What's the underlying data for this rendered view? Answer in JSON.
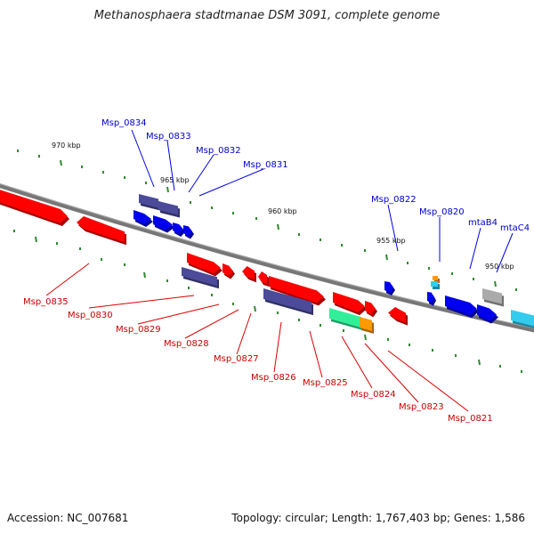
{
  "title": "Methanosphaera stadtmanae DSM 3091, complete genome",
  "footer": {
    "accession": "Accession: NC_007681",
    "summary": "Topology: circular; Length: 1,767,403 bp; Genes: 1,586"
  },
  "colors": {
    "backbone": "#777777",
    "tick": "#2e8b2e",
    "red_gene": "#ff0000",
    "blue_gene": "#0000ee",
    "purple_gene": "#4b4b9a",
    "green_gene": "#33ee99",
    "orange_gene": "#ff9900",
    "cyan_gene": "#33ccee",
    "grey_gene": "#aaaaaa",
    "blue_label": "#0000cc",
    "red_label": "#cc0000"
  },
  "scale_labels": [
    "970 kbp",
    "965 kbp",
    "960 kbp",
    "955 kbp",
    "950 kbp"
  ],
  "blue_labels": [
    "Msp_0834",
    "Msp_0833",
    "Msp_0832",
    "Msp_0831",
    "Msp_0822",
    "Msp_0820",
    "mtaB4",
    "mtaC4"
  ],
  "red_labels": [
    "Msp_0835",
    "Msp_0830",
    "Msp_0829",
    "Msp_0828",
    "Msp_0827",
    "Msp_0826",
    "Msp_0825",
    "Msp_0824",
    "Msp_0823",
    "Msp_0821"
  ]
}
